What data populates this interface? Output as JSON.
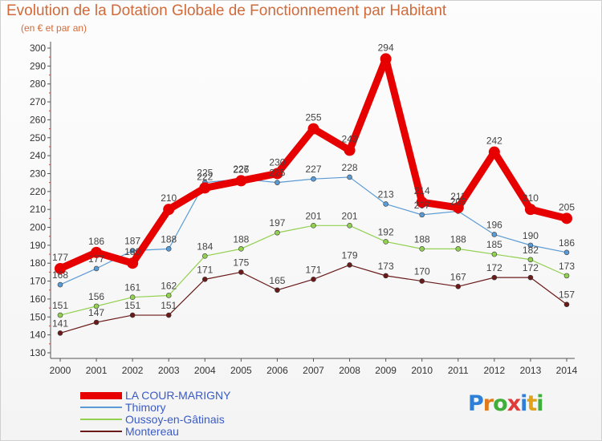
{
  "header": {
    "title": "Evolution de la Dotation Globale de Fonctionnement par Habitant",
    "subtitle": "(en € et par an)"
  },
  "logo": {
    "text": "Proxiti",
    "colors": [
      "#2e7fd8",
      "#e07a1a",
      "#3fae3a",
      "#e03a3a",
      "#2e7fd8",
      "#e0a21a",
      "#3fae3a"
    ]
  },
  "chart_data": {
    "type": "line",
    "title": "Evolution de la Dotation Globale de Fonctionnement par Habitant",
    "subtitle": "(en € et par an)",
    "x": [
      "2000",
      "2001",
      "2002",
      "2003",
      "2004",
      "2005",
      "2006",
      "2007",
      "2008",
      "2009",
      "2010",
      "2011",
      "2012",
      "2013",
      "2014"
    ],
    "y_ticks": [
      130,
      140,
      150,
      160,
      170,
      180,
      190,
      200,
      210,
      220,
      230,
      240,
      250,
      260,
      270,
      280,
      290,
      300
    ],
    "ylim": [
      130,
      300
    ],
    "grid": false,
    "legend_position": "bottom-left",
    "series": [
      {
        "name": "LA COUR-MARIGNY",
        "color": "#e60000",
        "width": 9,
        "marker": 7,
        "values": [
          177,
          186,
          180,
          210,
          222,
          226,
          230,
          255,
          243,
          294,
          214,
          211,
          242,
          210,
          205
        ],
        "labels": [
          "177",
          "186",
          "180",
          "210",
          "222",
          "226",
          "230",
          "255",
          "243",
          "294",
          "214",
          "211",
          "242",
          "210",
          "205"
        ]
      },
      {
        "name": "Thimory",
        "color": "#5b9bd5",
        "width": 1.2,
        "marker": 3,
        "values": [
          168,
          177,
          187,
          188,
          225,
          227,
          225,
          227,
          228,
          213,
          207,
          209,
          196,
          190,
          186
        ],
        "labels": [
          "168",
          "177",
          "187",
          "188",
          "225",
          "227",
          "225",
          "227",
          "228",
          "213",
          "207",
          "209",
          "196",
          "190",
          "186"
        ]
      },
      {
        "name": "Oussoy-en-Gâtinais",
        "color": "#92d050",
        "width": 1.2,
        "marker": 3,
        "values": [
          151,
          156,
          161,
          162,
          184,
          188,
          197,
          201,
          201,
          192,
          188,
          188,
          185,
          182,
          173
        ],
        "labels": [
          "151",
          "156",
          "161",
          "162",
          "184",
          "188",
          "197",
          "201",
          "201",
          "192",
          "188",
          "188",
          "185",
          "182",
          "173"
        ]
      },
      {
        "name": "Montereau",
        "color": "#6b1a1a",
        "width": 1.2,
        "marker": 3,
        "values": [
          141,
          147,
          151,
          151,
          171,
          175,
          165,
          171,
          179,
          173,
          170,
          167,
          172,
          172,
          157
        ],
        "labels": [
          "141",
          "147",
          "151",
          "151",
          "171",
          "175",
          "165",
          "171",
          "179",
          "173",
          "170",
          "167",
          "172",
          "172",
          "157"
        ]
      }
    ]
  }
}
